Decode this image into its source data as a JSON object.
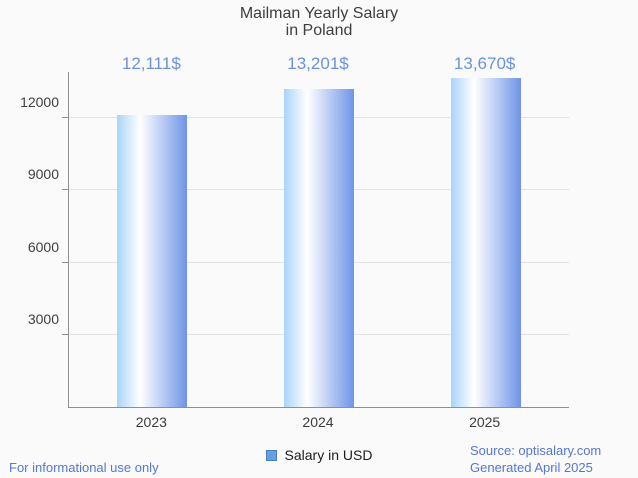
{
  "title": {
    "line1": "Mailman Yearly Salary",
    "line2": "in Poland"
  },
  "chart_data": {
    "type": "bar",
    "categories": [
      "2023",
      "2024",
      "2025"
    ],
    "values": [
      12111,
      13201,
      13670
    ],
    "value_labels": [
      "12,111$",
      "13,201$",
      "13,670$"
    ],
    "series_name": "Salary in USD",
    "title": "Mailman Yearly Salary in Poland",
    "xlabel": "",
    "ylabel": "",
    "yticks": [
      3000,
      6000,
      9000,
      12000
    ],
    "ylim": [
      0,
      13910
    ],
    "grid": true,
    "legend_position": "bottom"
  },
  "legend": {
    "label": "Salary in USD"
  },
  "footer": {
    "left": "For informational use only",
    "source": "Source: optisalary.com",
    "generated": "Generated April 2025"
  },
  "colors": {
    "background": "#fafafa",
    "title_text": "#3e3e3e",
    "bar_gradient_left": "#a9d4f8",
    "bar_gradient_mid": "#ffffff",
    "bar_gradient_right": "#6f94e6",
    "value_label_text": "#6a92da",
    "axis_line": "#8f8f8f",
    "gridline": "#e3e3e3",
    "tick_text": "#3f3f3f",
    "legend_swatch_fill": "#64a0e6",
    "legend_swatch_border": "#4a7ebc",
    "footer_text": "#5577d4"
  }
}
